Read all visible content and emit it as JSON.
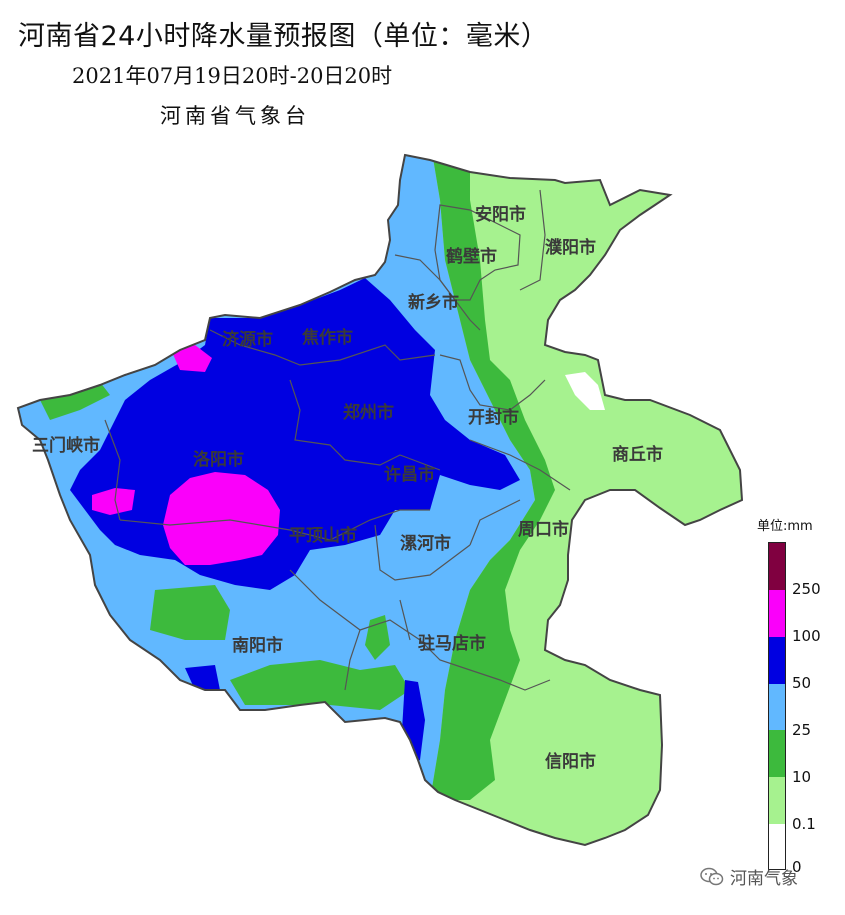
{
  "title": "河南省24小时降水量预报图（单位：毫米）",
  "subtitle": "2021年07月19日20时-20日20时",
  "agency": "河南省气象台",
  "cities": [
    {
      "id": "anyang",
      "label": "安阳市"
    },
    {
      "id": "hebi",
      "label": "鹤壁市"
    },
    {
      "id": "puyang",
      "label": "濮阳市"
    },
    {
      "id": "xinxiang",
      "label": "新乡市"
    },
    {
      "id": "jiyuan",
      "label": "济源市"
    },
    {
      "id": "jiaozuo",
      "label": "焦作市"
    },
    {
      "id": "zhengzhou",
      "label": "郑州市"
    },
    {
      "id": "kaifeng",
      "label": "开封市"
    },
    {
      "id": "shangqiu",
      "label": "商丘市"
    },
    {
      "id": "sanmenxia",
      "label": "三门峡市"
    },
    {
      "id": "luoyang",
      "label": "洛阳市"
    },
    {
      "id": "xuchang",
      "label": "许昌市"
    },
    {
      "id": "pingdingshan",
      "label": "平顶山市"
    },
    {
      "id": "luohe",
      "label": "漯河市"
    },
    {
      "id": "zhoukou",
      "label": "周口市"
    },
    {
      "id": "nanyang",
      "label": "南阳市"
    },
    {
      "id": "zhumadian",
      "label": "驻马店市"
    },
    {
      "id": "xinyang",
      "label": "信阳市"
    }
  ],
  "legend": {
    "unit": "单位:mm",
    "levels": [
      {
        "label": "0",
        "color": "#ffffff"
      },
      {
        "label": "0.1",
        "color": "#a6f28f"
      },
      {
        "label": "10",
        "color": "#3dba3d"
      },
      {
        "label": "25",
        "color": "#61b8ff"
      },
      {
        "label": "50",
        "color": "#0000e1"
      },
      {
        "label": "100",
        "color": "#fa00fa"
      },
      {
        "label": "250",
        "color": "#800040"
      }
    ]
  },
  "watermark": {
    "text": "河南气象",
    "icon": "wechat-icon"
  }
}
